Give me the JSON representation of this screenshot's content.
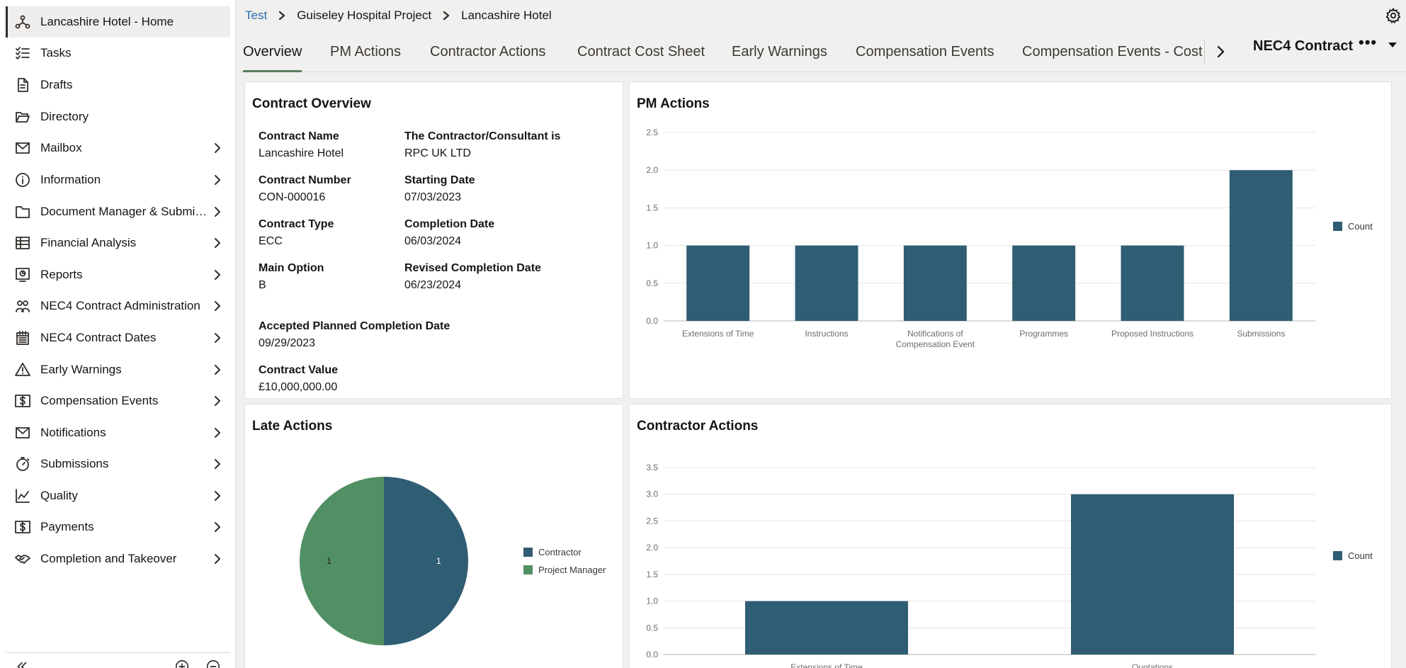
{
  "sidebar": {
    "items": [
      {
        "label": "Lancashire Hotel - Home",
        "icon": "network-home-icon",
        "chevron": false,
        "active": true
      },
      {
        "label": "Tasks",
        "icon": "checklist-icon",
        "chevron": false
      },
      {
        "label": "Drafts",
        "icon": "drafts-document-icon",
        "chevron": false
      },
      {
        "label": "Directory",
        "icon": "folder-open-icon",
        "chevron": false
      },
      {
        "label": "Mailbox",
        "icon": "mail-icon",
        "chevron": true
      },
      {
        "label": "Information",
        "icon": "info-icon",
        "chevron": true
      },
      {
        "label": "Document Manager & Submittals",
        "icon": "folder-icon",
        "chevron": true
      },
      {
        "label": "Financial Analysis",
        "icon": "spreadsheet-icon",
        "chevron": true
      },
      {
        "label": "Reports",
        "icon": "report-icon",
        "chevron": true
      },
      {
        "label": "NEC4 Contract Administration",
        "icon": "people-icon",
        "chevron": true
      },
      {
        "label": "NEC4 Contract Dates",
        "icon": "calendar-icon",
        "chevron": true
      },
      {
        "label": "Early Warnings",
        "icon": "warning-icon",
        "chevron": true
      },
      {
        "label": "Compensation Events",
        "icon": "dollar-icon",
        "chevron": true
      },
      {
        "label": "Notifications",
        "icon": "mail-icon",
        "chevron": true
      },
      {
        "label": "Submissions",
        "icon": "stopwatch-icon",
        "chevron": true
      },
      {
        "label": "Quality",
        "icon": "line-chart-icon",
        "chevron": true
      },
      {
        "label": "Payments",
        "icon": "dollar-icon",
        "chevron": true
      },
      {
        "label": "Completion and Takeover",
        "icon": "handshake-icon",
        "chevron": true
      }
    ]
  },
  "breadcrumb": {
    "items": [
      "Test",
      "Guiseley Hospital Project",
      "Lancashire Hotel"
    ]
  },
  "tabs": [
    "Overview",
    "PM Actions",
    "Contractor Actions",
    "Contract Cost Sheet",
    "Early Warnings",
    "Compensation Events",
    "Compensation Events - Cost"
  ],
  "header": {
    "contract_title": "NEC4 Contract",
    "more": "•••"
  },
  "overview": {
    "title": "Contract Overview",
    "fields": [
      {
        "label": "Contract Name",
        "value": "Lancashire Hotel"
      },
      {
        "label": "The Contractor/Consultant is",
        "value": "RPC UK LTD"
      },
      {
        "label": "Contract Number",
        "value": "CON-000016"
      },
      {
        "label": "Starting Date",
        "value": "07/03/2023"
      },
      {
        "label": "Contract Type",
        "value": "ECC"
      },
      {
        "label": "Completion Date",
        "value": "06/03/2024"
      },
      {
        "label": "Main Option",
        "value": "B"
      },
      {
        "label": "Revised Completion Date",
        "value": "06/23/2024"
      },
      {
        "label": "Accepted Planned Completion Date",
        "value": "09/29/2023"
      },
      {
        "label": "Contract Value",
        "value": "£10,000,000.00"
      }
    ]
  },
  "chart_data": [
    {
      "type": "bar",
      "title": "PM Actions",
      "categories": [
        "Extensions of Time",
        "Instructions",
        "Notifications of Compensation Event",
        "Programmes",
        "Proposed Instructions",
        "Submissions"
      ],
      "series": [
        {
          "name": "Count",
          "values": [
            1,
            1,
            1,
            1,
            1,
            2
          ]
        }
      ],
      "ylim": [
        0,
        2.5
      ],
      "yticks": [
        "0.0",
        "0.5",
        "1.0",
        "1.5",
        "2.0",
        "2.5"
      ],
      "grid": true,
      "legend": "right",
      "color": "#2f5d73"
    },
    {
      "type": "pie",
      "title": "Late Actions",
      "slices": [
        {
          "label": "Contractor",
          "value": 1,
          "color": "#2f5d73"
        },
        {
          "label": "Project Manager",
          "value": 1,
          "color": "#519064"
        }
      ],
      "legend": "right"
    },
    {
      "type": "bar",
      "title": "Contractor Actions",
      "categories": [
        "Extensions of Time",
        "Quotations"
      ],
      "series": [
        {
          "name": "Count",
          "values": [
            1,
            3
          ]
        }
      ],
      "ylim": [
        0,
        3.5
      ],
      "yticks": [
        "0.0",
        "0.5",
        "1.0",
        "1.5",
        "2.0",
        "2.5",
        "3.0",
        "3.5"
      ],
      "grid": true,
      "legend": "right",
      "color": "#2f5d73"
    }
  ]
}
